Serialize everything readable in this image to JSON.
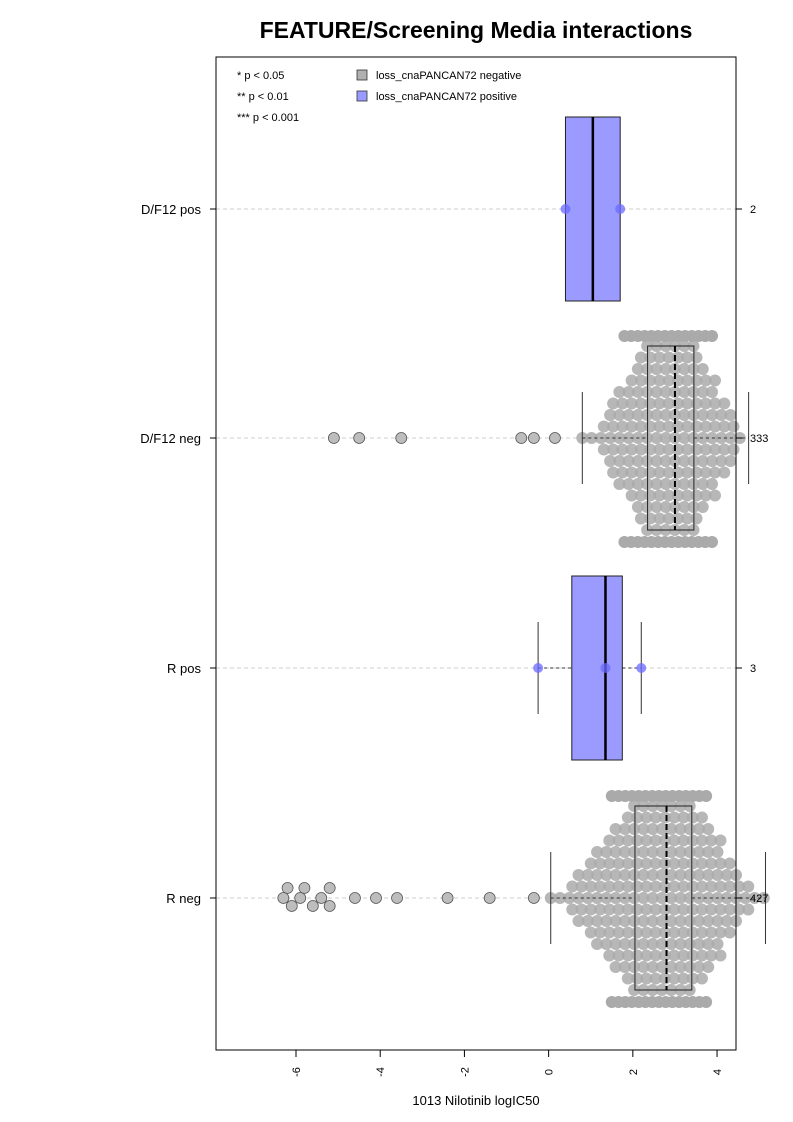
{
  "chart_data": {
    "type": "beeswarm-boxplot",
    "orientation": "horizontal",
    "title": "FEATURE/Screening Media interactions",
    "xlabel": "1013 Nilotinib logIC50",
    "xlim": [
      -7.9,
      4.45
    ],
    "x_ticks": [
      "-6",
      "-4",
      "-2",
      "0",
      "2",
      "4"
    ],
    "grid": "dashed horizontal line per group",
    "legend_placement": "top",
    "significance_legend": [
      "* p < 0.05",
      "** p < 0.01",
      "*** p < 0.001"
    ],
    "legend": [
      {
        "label": "loss_cnaPANCAN72 negative",
        "color": "#b0b0b0"
      },
      {
        "label": "loss_cnaPANCAN72 positive",
        "color": "#9a9aff"
      }
    ],
    "groups": [
      {
        "label": "D/F12 pos",
        "n": "2",
        "status": "positive",
        "box": {
          "q1": 0.4,
          "median": 1.05,
          "q3": 1.7,
          "whisker_low": 0.4,
          "whisker_high": 1.7
        },
        "points": [
          0.4,
          1.7
        ],
        "outliers": []
      },
      {
        "label": "D/F12 neg",
        "n": "333",
        "status": "negative",
        "box": {
          "q1": 2.35,
          "median": 3.0,
          "q3": 3.45,
          "whisker_low": 0.8,
          "whisker_high": 4.75
        },
        "outliers": [
          -5.1,
          -4.5,
          -3.5,
          -0.65,
          -0.35,
          0.15
        ],
        "swarm_range": [
          0.8,
          4.75
        ]
      },
      {
        "label": "R pos",
        "n": "3",
        "status": "positive",
        "box": {
          "q1": 0.55,
          "median": 1.35,
          "q3": 1.75,
          "whisker_low": -0.25,
          "whisker_high": 2.2
        },
        "points": [
          -0.25,
          1.35,
          2.2
        ],
        "outliers": []
      },
      {
        "label": "R neg",
        "n": "427",
        "status": "negative",
        "box": {
          "q1": 2.05,
          "median": 2.8,
          "q3": 3.4,
          "whisker_low": 0.05,
          "whisker_high": 5.15
        },
        "outliers": [
          -6.3,
          -6.2,
          -6.1,
          -5.9,
          -5.8,
          -5.6,
          -5.4,
          -5.2,
          -5.2,
          -4.6,
          -4.1,
          -3.6,
          -2.4,
          -1.4,
          -0.35
        ],
        "swarm_range": [
          0.05,
          5.15
        ]
      }
    ]
  }
}
